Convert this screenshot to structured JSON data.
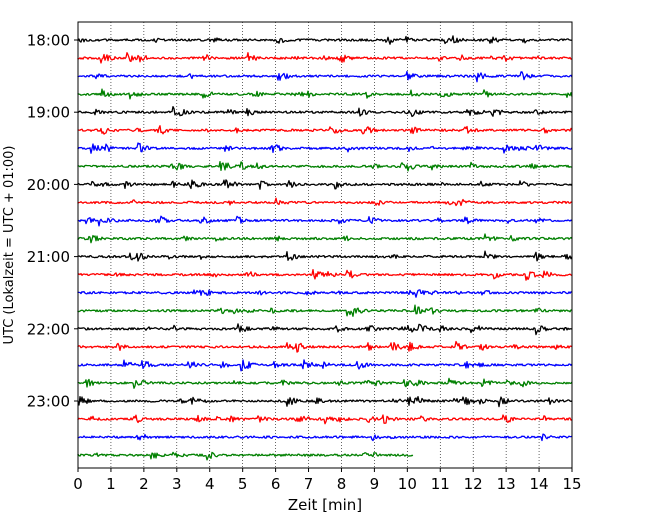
{
  "chart_data": {
    "type": "line",
    "title": "",
    "xlabel": "Zeit  [min]",
    "ylabel": "UTC (Lokalzeit = UTC + 01:00)",
    "xlim": [
      0,
      15
    ],
    "x_ticks": [
      "0",
      "1",
      "2",
      "3",
      "4",
      "5",
      "6",
      "7",
      "8",
      "9",
      "10",
      "11",
      "12",
      "13",
      "14",
      "15"
    ],
    "y_ticks": [
      "18:00",
      "19:00",
      "20:00",
      "21:00",
      "22:00",
      "23:00"
    ],
    "grid": "vertical dotted lines at each minute",
    "row_interval_minutes": 15,
    "color_cycle": [
      "#000000",
      "#ff0000",
      "#0000ff",
      "#008000"
    ],
    "series": [
      {
        "start": "18:00",
        "end_min": 15
      },
      {
        "start": "18:15",
        "end_min": 15
      },
      {
        "start": "18:30",
        "end_min": 15
      },
      {
        "start": "18:45",
        "end_min": 15
      },
      {
        "start": "19:00",
        "end_min": 15
      },
      {
        "start": "19:15",
        "end_min": 15
      },
      {
        "start": "19:30",
        "end_min": 15
      },
      {
        "start": "19:45",
        "end_min": 15
      },
      {
        "start": "20:00",
        "end_min": 15
      },
      {
        "start": "20:15",
        "end_min": 15
      },
      {
        "start": "20:30",
        "end_min": 15
      },
      {
        "start": "20:45",
        "end_min": 15
      },
      {
        "start": "21:00",
        "end_min": 15
      },
      {
        "start": "21:15",
        "end_min": 15
      },
      {
        "start": "21:30",
        "end_min": 15
      },
      {
        "start": "21:45",
        "end_min": 15
      },
      {
        "start": "22:00",
        "end_min": 15
      },
      {
        "start": "22:15",
        "end_min": 15
      },
      {
        "start": "22:30",
        "end_min": 15
      },
      {
        "start": "22:45",
        "end_min": 15
      },
      {
        "start": "23:00",
        "end_min": 15
      },
      {
        "start": "23:15",
        "end_min": 15
      },
      {
        "start": "23:30",
        "end_min": 15
      },
      {
        "start": "23:45",
        "end_min": 10.2
      }
    ]
  }
}
